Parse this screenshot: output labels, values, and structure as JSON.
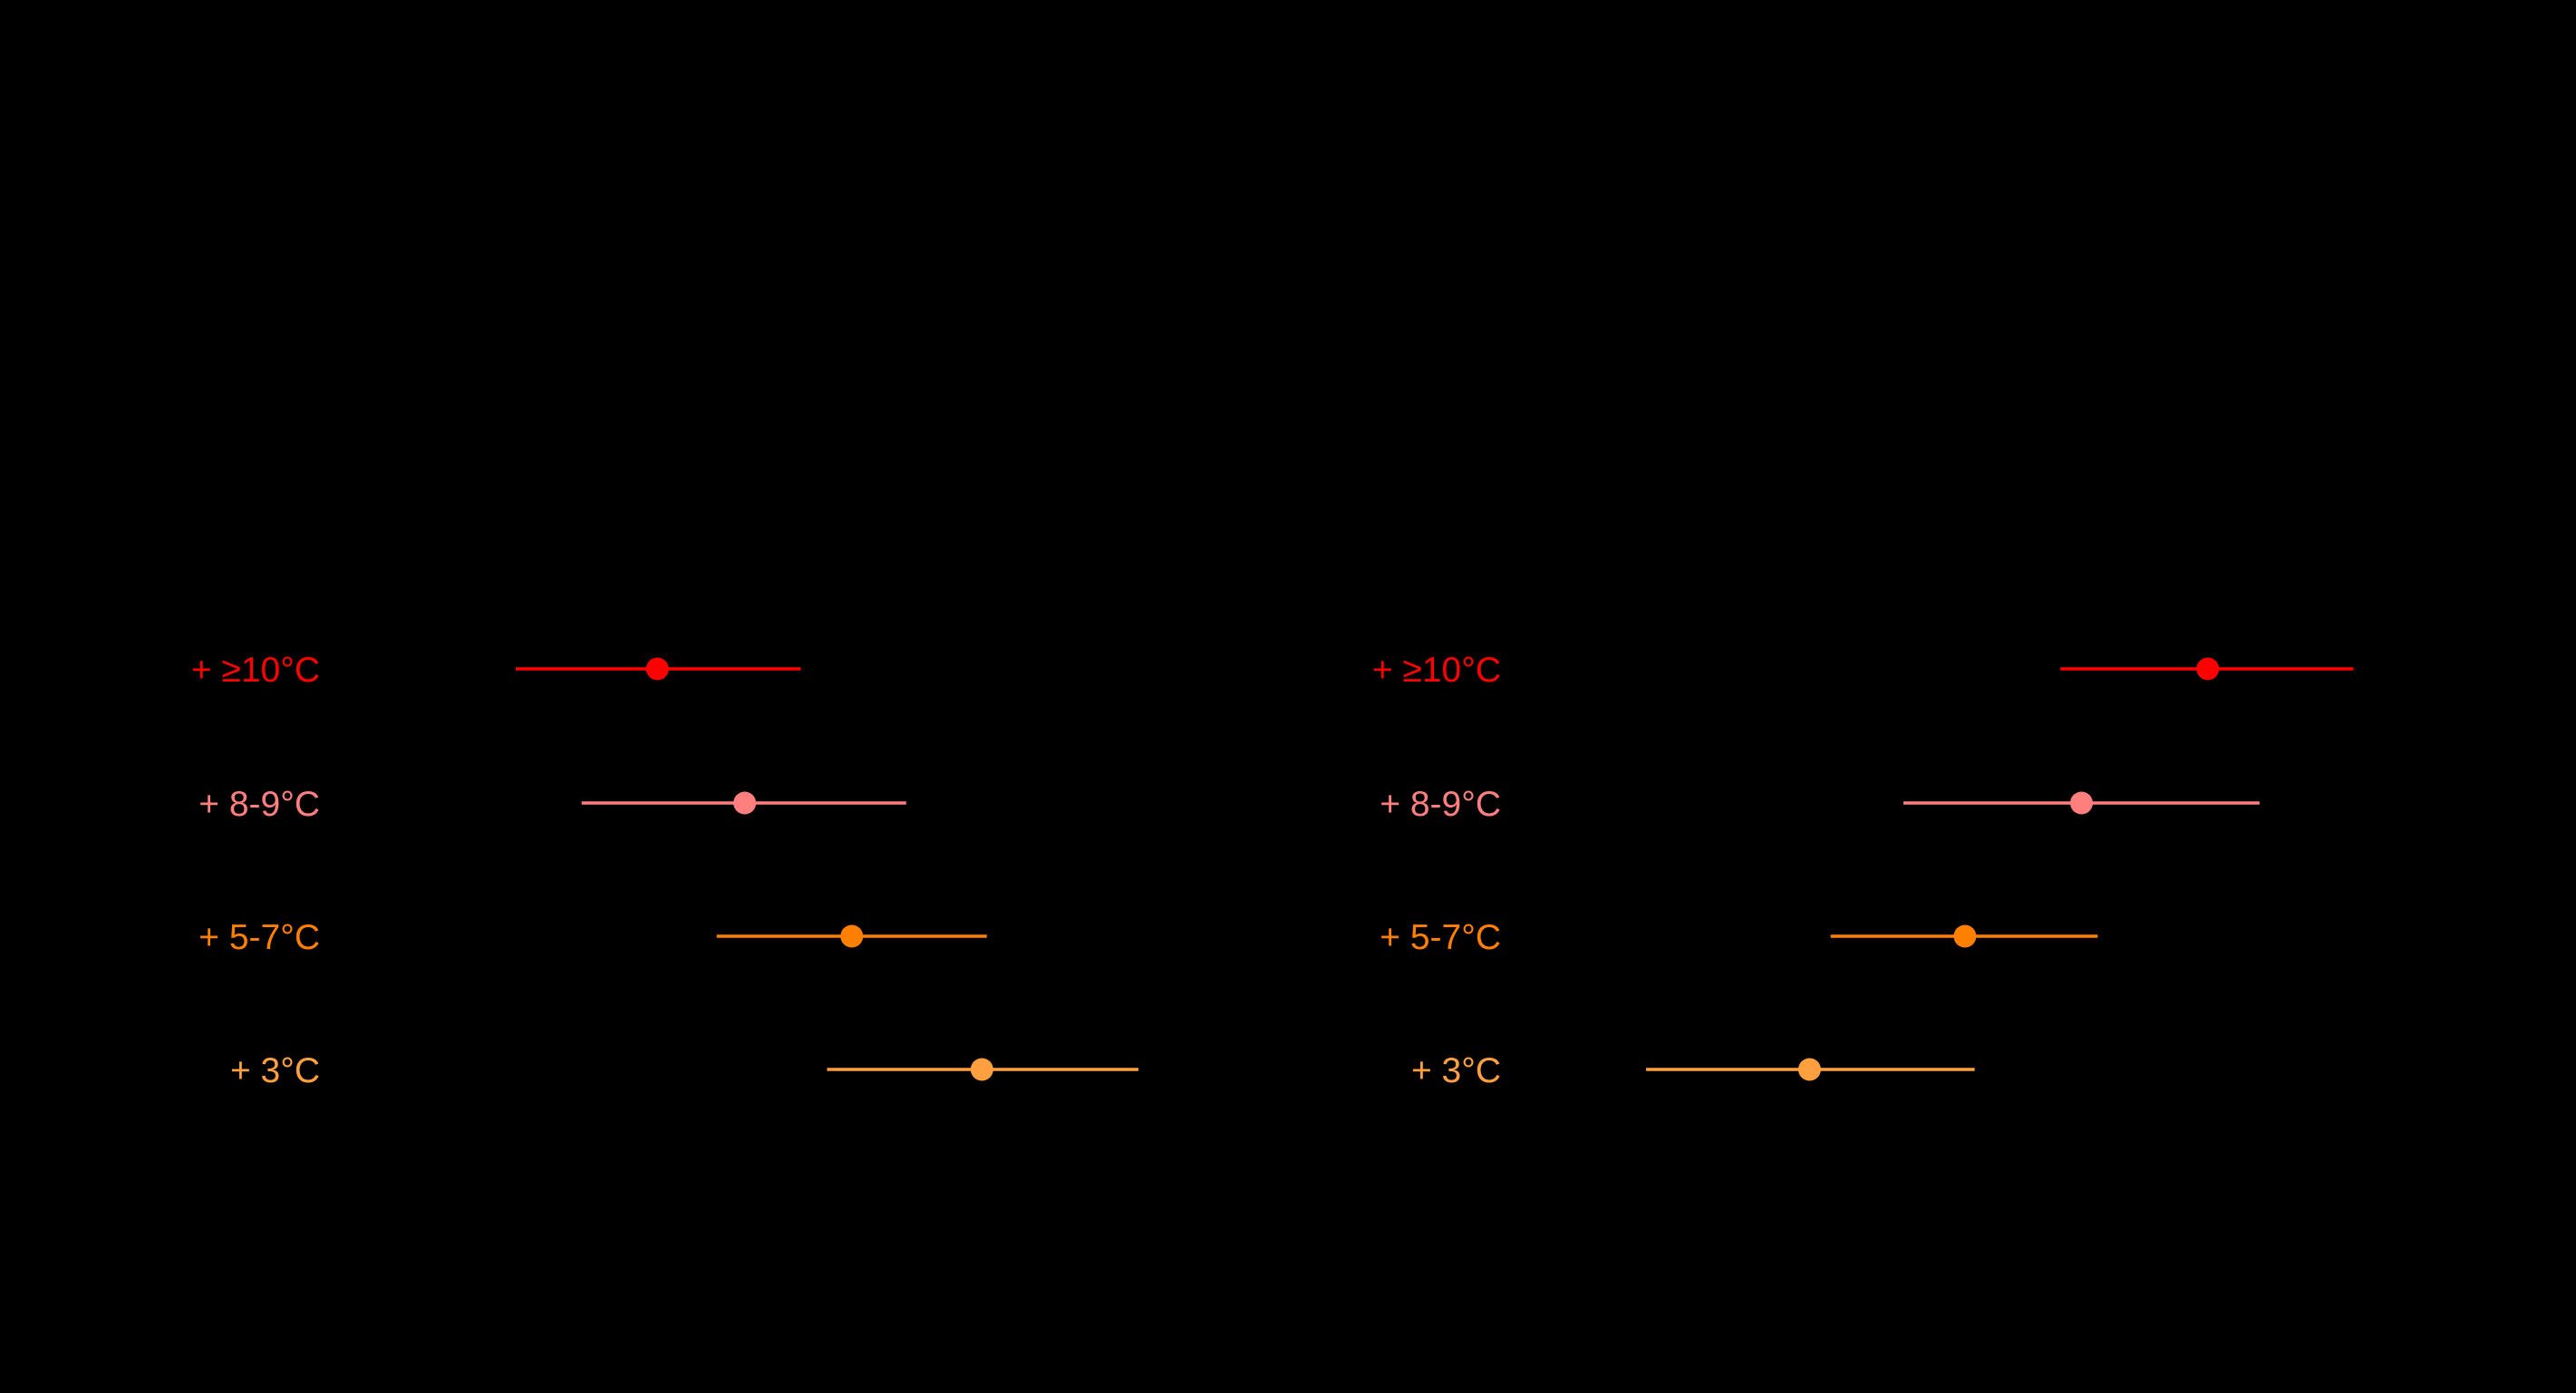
{
  "chart_data": [
    {
      "type": "scatter",
      "title": "",
      "xlabel": "",
      "ylabel": "",
      "categories": [
        "+ ≥10°C",
        "+ 8-9°C",
        "+ 5-7°C",
        "+ 3°C"
      ],
      "points": [
        {
          "label": "+ ≥10°C",
          "color": "#ff0000",
          "estimate": 0.399,
          "low": 0.313,
          "high": 0.486
        },
        {
          "label": "+ 8-9°C",
          "color": "#ff7f7f",
          "estimate": 0.452,
          "low": 0.353,
          "high": 0.55
        },
        {
          "label": "+ 5-7°C",
          "color": "#ff7f00",
          "estimate": 0.517,
          "low": 0.435,
          "high": 0.599
        },
        {
          "label": "+ 3°C",
          "color": "#ffa040",
          "estimate": 0.596,
          "low": 0.502,
          "high": 0.691
        }
      ],
      "xlim": [
        0.22,
        0.74
      ],
      "grid": false,
      "legend": "none"
    },
    {
      "type": "scatter",
      "title": "",
      "xlabel": "",
      "ylabel": "",
      "categories": [
        "+ ≥10°C",
        "+ 8-9°C",
        "+ 5-7°C",
        "+ 3°C"
      ],
      "points": [
        {
          "label": "+ ≥10°C",
          "color": "#ff0000",
          "estimate": 0.352,
          "low": 0.261,
          "high": 0.442
        },
        {
          "label": "+ 8-9°C",
          "color": "#ff7f7f",
          "estimate": 0.274,
          "low": 0.164,
          "high": 0.384
        },
        {
          "label": "+ 5-7°C",
          "color": "#ff7f00",
          "estimate": 0.202,
          "low": 0.119,
          "high": 0.284
        },
        {
          "label": "+ 3°C",
          "color": "#ffa040",
          "estimate": 0.106,
          "low": 0.005,
          "high": 0.208
        }
      ],
      "xlim": [
        -0.06,
        0.5
      ],
      "grid": false,
      "legend": "none"
    }
  ]
}
